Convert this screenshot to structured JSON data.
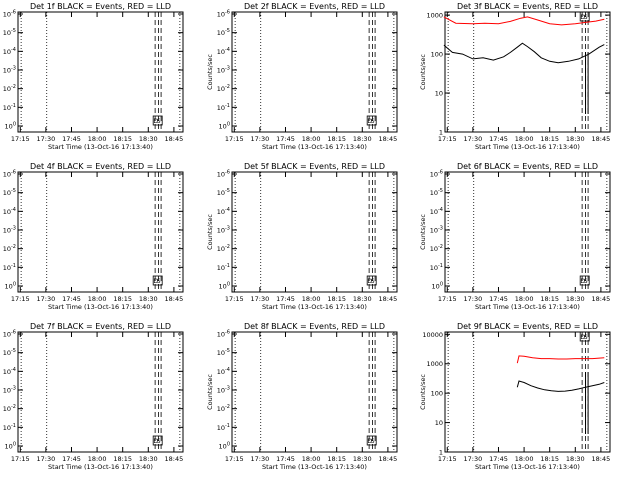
{
  "figure": {
    "xticks": [
      "17:15",
      "17:30",
      "17:45",
      "18:00",
      "18:15",
      "18:30",
      "18:45"
    ],
    "xlabel": "Start Time (13-Oct-16 17:13:40)",
    "ylabel": "Counts/sec",
    "colors": {
      "events": "#000000",
      "lld": "#ff0000"
    }
  },
  "chart_data": [
    {
      "type": "line",
      "title": "Det 1f BLACK = Events, RED = LLD",
      "has_data": false,
      "yticks": [
        "10^0",
        "10^-1",
        "10^-2",
        "10^-3",
        "10^-4",
        "10^-5",
        "10^-6"
      ],
      "markers": [
        "D",
        "S"
      ]
    },
    {
      "type": "line",
      "title": "Det 2f BLACK = Events, RED = LLD",
      "has_data": false,
      "yticks": [
        "10^0",
        "10^-1",
        "10^-2",
        "10^-3",
        "10^-4",
        "10^-5",
        "10^-6"
      ],
      "markers": [
        "D",
        "S"
      ]
    },
    {
      "type": "line",
      "title": "Det 3f BLACK = Events, RED = LLD",
      "has_data": true,
      "yscale": "log",
      "ylim": [
        1,
        1200
      ],
      "yticks": [
        "1",
        "10",
        "100",
        "1000"
      ],
      "markers": [
        "D",
        "S"
      ],
      "series": [
        {
          "name": "LLD",
          "color": "#ff0000",
          "x": [
            "17:13",
            "17:20",
            "17:30",
            "17:37",
            "17:45",
            "17:52",
            "17:58",
            "18:02",
            "18:08",
            "18:15",
            "18:22",
            "18:30",
            "18:36",
            "18:42",
            "18:47"
          ],
          "y": [
            900,
            620,
            600,
            620,
            600,
            690,
            830,
            900,
            750,
            600,
            560,
            600,
            650,
            700,
            780
          ]
        },
        {
          "name": "Events",
          "color": "#000000",
          "x": [
            "17:13",
            "17:18",
            "17:24",
            "17:30",
            "17:36",
            "17:42",
            "17:48",
            "17:52",
            "17:56",
            "17:59",
            "18:02",
            "18:06",
            "18:10",
            "18:15",
            "18:20",
            "18:26",
            "18:32",
            "18:38",
            "18:44",
            "18:47"
          ],
          "y": [
            170,
            110,
            100,
            75,
            80,
            70,
            85,
            110,
            150,
            190,
            155,
            115,
            80,
            65,
            60,
            65,
            75,
            100,
            150,
            175
          ]
        }
      ]
    },
    {
      "type": "line",
      "title": "Det 4f BLACK = Events, RED = LLD",
      "has_data": false,
      "yticks": [
        "10^0",
        "10^-1",
        "10^-2",
        "10^-3",
        "10^-4",
        "10^-5",
        "10^-6"
      ],
      "markers": [
        "D",
        "S"
      ]
    },
    {
      "type": "line",
      "title": "Det 5f BLACK = Events, RED = LLD",
      "has_data": false,
      "yticks": [
        "10^0",
        "10^-1",
        "10^-2",
        "10^-3",
        "10^-4",
        "10^-5",
        "10^-6"
      ],
      "markers": [
        "D",
        "S"
      ]
    },
    {
      "type": "line",
      "title": "Det 6f BLACK = Events, RED = LLD",
      "has_data": false,
      "yticks": [
        "10^0",
        "10^-1",
        "10^-2",
        "10^-3",
        "10^-4",
        "10^-5",
        "10^-6"
      ],
      "markers": [
        "D",
        "S"
      ]
    },
    {
      "type": "line",
      "title": "Det 7f BLACK = Events, RED = LLD",
      "has_data": false,
      "yticks": [
        "10^0",
        "10^-1",
        "10^-2",
        "10^-3",
        "10^-4",
        "10^-5",
        "10^-6"
      ],
      "markers": [
        "D",
        "S"
      ]
    },
    {
      "type": "line",
      "title": "Det 8f BLACK = Events, RED = LLD",
      "has_data": false,
      "yticks": [
        "10^0",
        "10^-1",
        "10^-2",
        "10^-3",
        "10^-4",
        "10^-5",
        "10^-6"
      ],
      "markers": [
        "D",
        "S"
      ]
    },
    {
      "type": "line",
      "title": "Det 9f BLACK = Events, RED = LLD",
      "has_data": true,
      "yscale": "log",
      "ylim": [
        1,
        12000
      ],
      "yticks": [
        "1",
        "10",
        "100",
        "1000",
        "10000"
      ],
      "markers": [
        "D",
        "S"
      ],
      "series": [
        {
          "name": "LLD",
          "color": "#ff0000",
          "x": [
            "17:56",
            "17:57",
            "18:00",
            "18:05",
            "18:10",
            "18:15",
            "18:20",
            "18:25",
            "18:30",
            "18:35",
            "18:40",
            "18:44",
            "18:47"
          ],
          "y": [
            1050,
            1850,
            1800,
            1600,
            1500,
            1500,
            1450,
            1450,
            1500,
            1500,
            1500,
            1550,
            1600
          ]
        },
        {
          "name": "Events",
          "color": "#000000",
          "x": [
            "17:56",
            "17:57",
            "18:00",
            "18:04",
            "18:08",
            "18:12",
            "18:16",
            "18:20",
            "18:24",
            "18:28",
            "18:32",
            "18:36",
            "18:40",
            "18:44",
            "18:47"
          ],
          "y": [
            160,
            260,
            230,
            180,
            150,
            130,
            120,
            115,
            118,
            125,
            140,
            160,
            180,
            200,
            230
          ]
        }
      ]
    }
  ]
}
